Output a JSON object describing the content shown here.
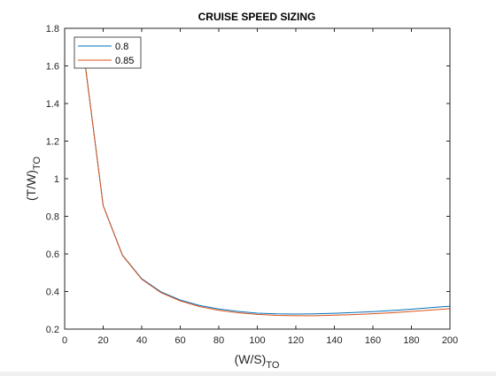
{
  "chart_data": {
    "type": "line",
    "title": "CRUISE SPEED SIZING",
    "xlabel": "(W/S)",
    "xlabel_sub": "TO",
    "ylabel": "(T/W)",
    "ylabel_sub": "TO",
    "xlim": [
      0,
      200
    ],
    "ylim": [
      0.2,
      1.8
    ],
    "xticks": [
      0,
      20,
      40,
      60,
      80,
      100,
      120,
      140,
      160,
      180,
      200
    ],
    "yticks": [
      0.2,
      0.4,
      0.6,
      0.8,
      1,
      1.2,
      1.4,
      1.6,
      1.8
    ],
    "grid": false,
    "legend_position": "top-left",
    "x": [
      10,
      20,
      30,
      40,
      50,
      60,
      70,
      80,
      90,
      100,
      110,
      120,
      130,
      140,
      150,
      160,
      170,
      180,
      190,
      200
    ],
    "series": [
      {
        "name": "0.8",
        "color": "#0072BD",
        "values": [
          1.66,
          0.857,
          0.594,
          0.468,
          0.398,
          0.355,
          0.326,
          0.307,
          0.294,
          0.285,
          0.281,
          0.28,
          0.281,
          0.284,
          0.288,
          0.293,
          0.299,
          0.306,
          0.314,
          0.322
        ]
      },
      {
        "name": "0.85",
        "color": "#D95319",
        "values": [
          1.66,
          0.856,
          0.592,
          0.465,
          0.394,
          0.35,
          0.32,
          0.3,
          0.287,
          0.278,
          0.273,
          0.271,
          0.271,
          0.274,
          0.277,
          0.282,
          0.287,
          0.294,
          0.301,
          0.309
        ]
      }
    ]
  }
}
